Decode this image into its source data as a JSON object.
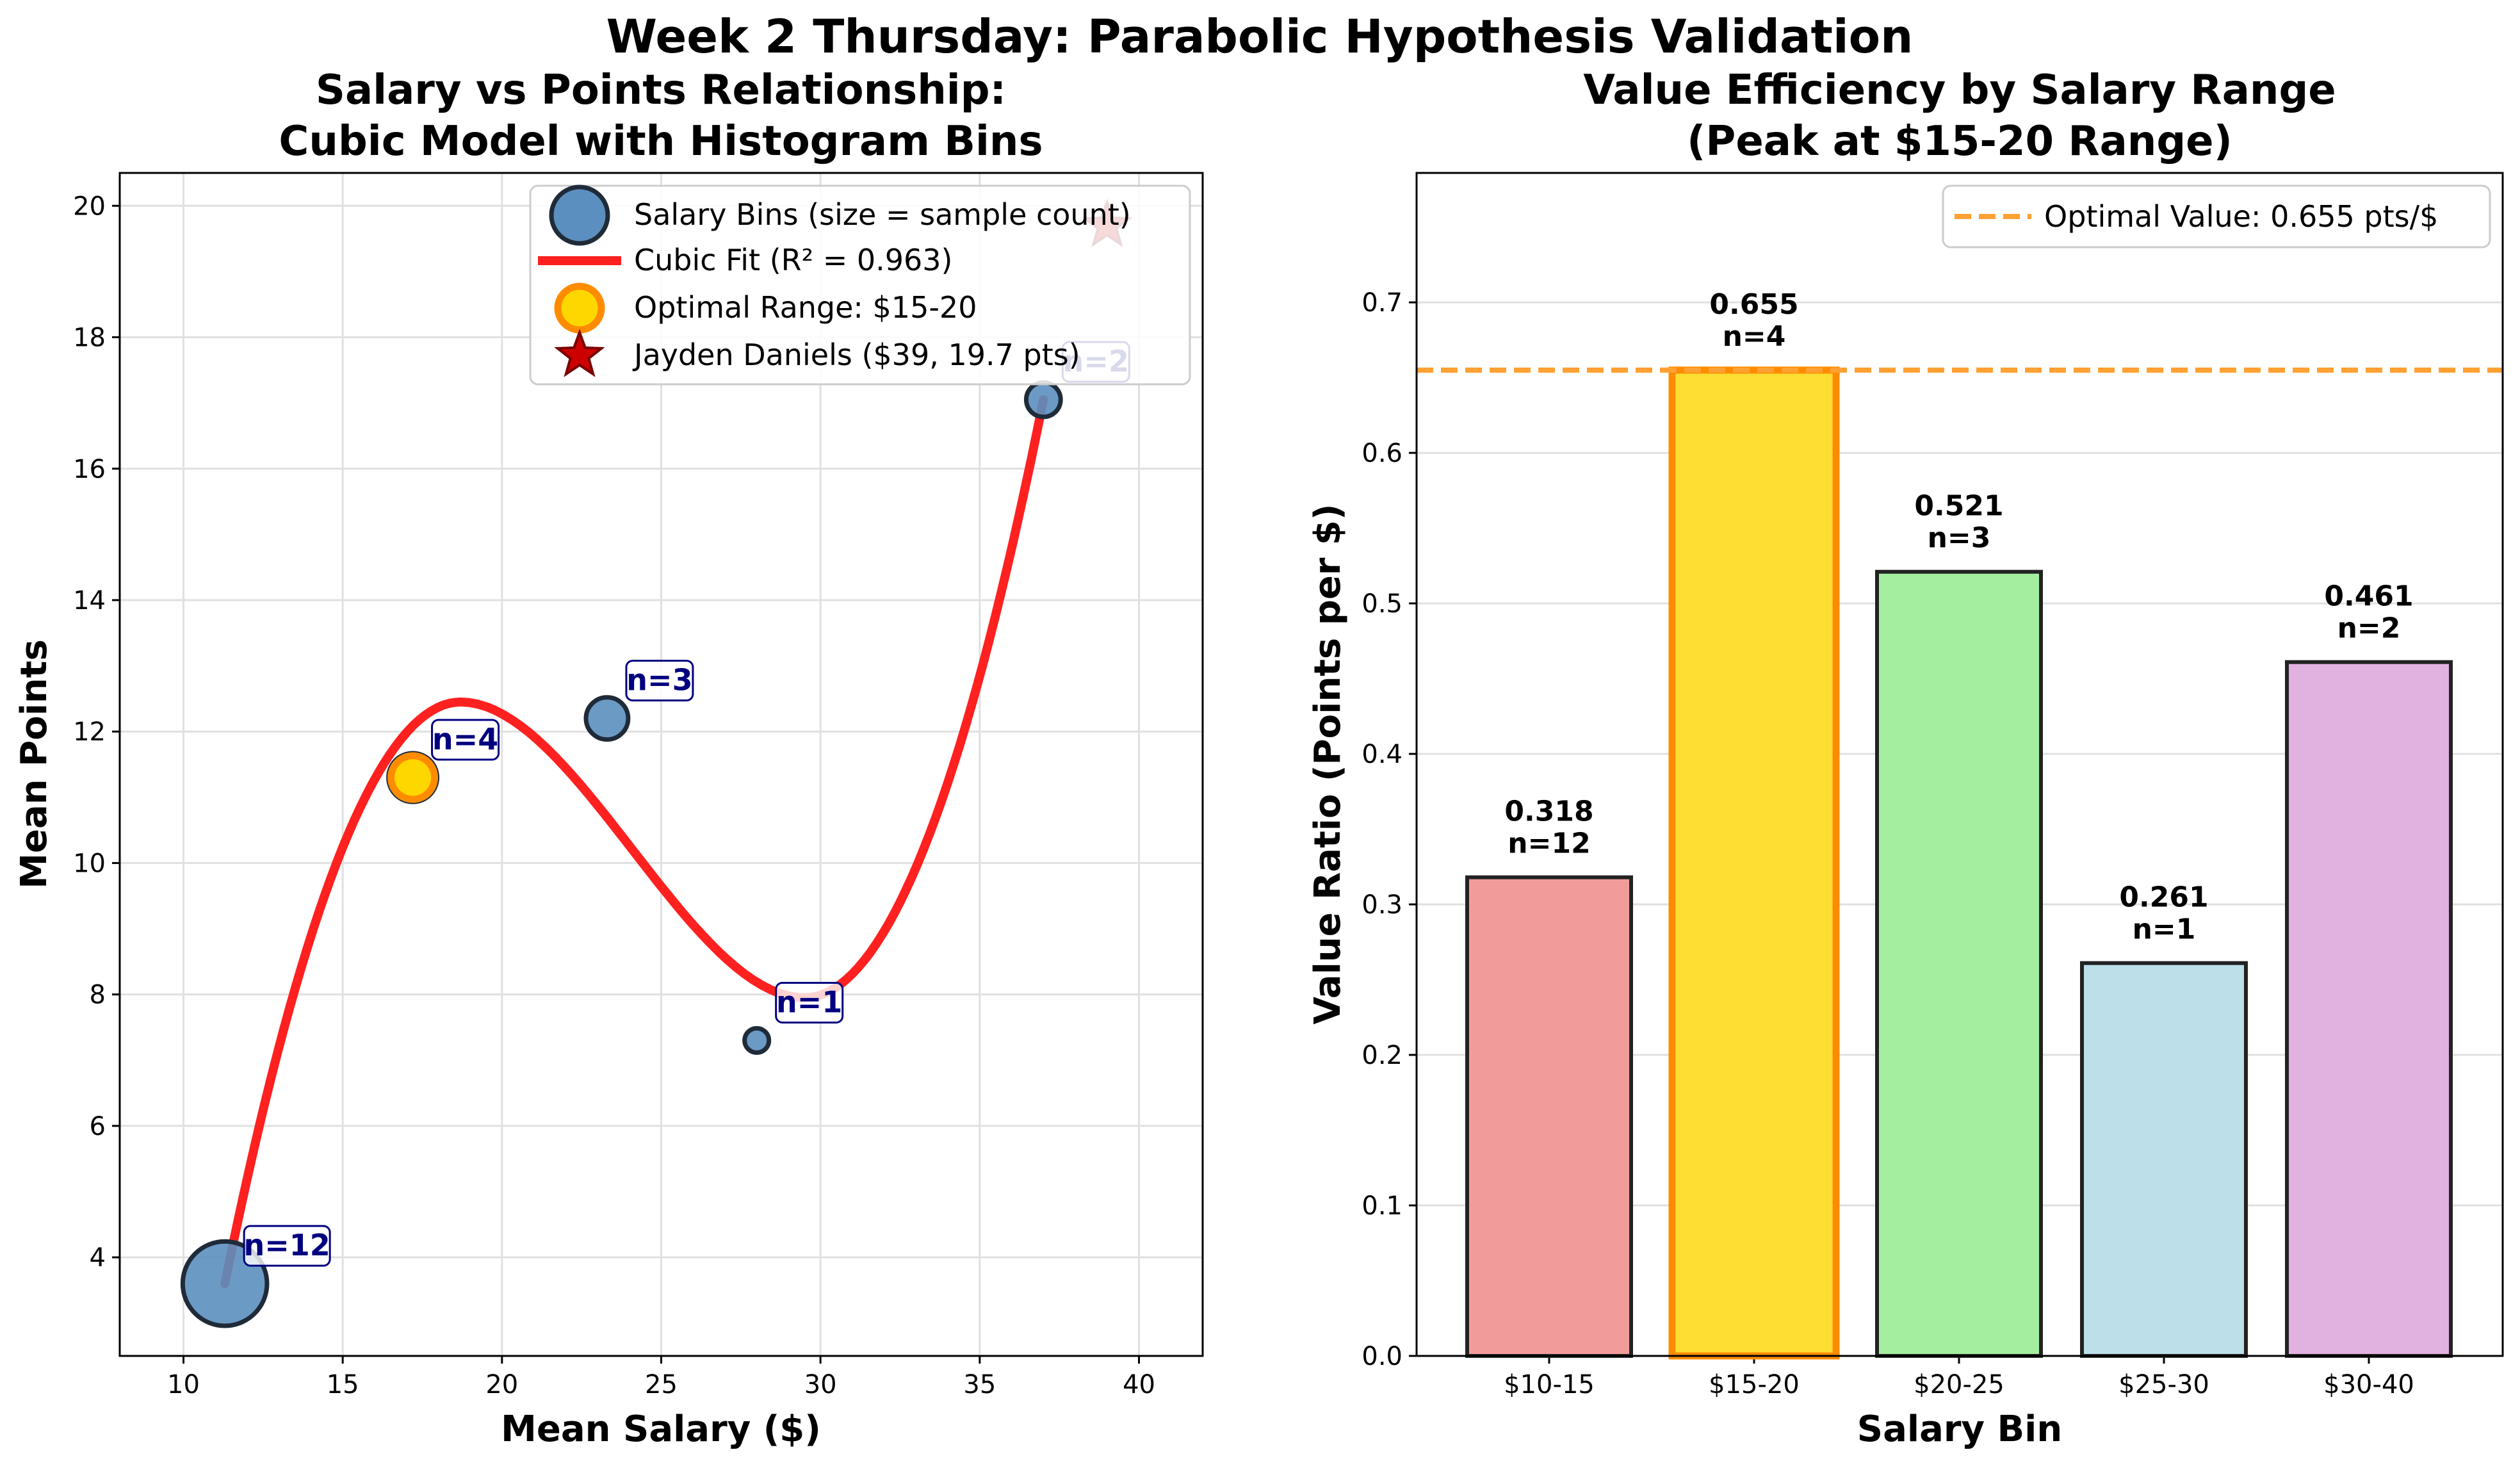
{
  "suptitle": "Week 2 Thursday: Parabolic Hypothesis Validation",
  "chart_data": [
    {
      "type": "scatter",
      "title_line1": "Salary vs Points Relationship:",
      "title_line2": "Cubic Model with Histogram Bins",
      "xlabel": "Mean Salary ($)",
      "ylabel": "Mean Points",
      "xlim": [
        8,
        42
      ],
      "ylim": [
        2.5,
        20.5
      ],
      "xticks": [
        10,
        15,
        20,
        25,
        30,
        35,
        40
      ],
      "yticks": [
        4,
        6,
        8,
        10,
        12,
        14,
        16,
        18,
        20
      ],
      "grid": true,
      "legend_position": "upper right",
      "legend": [
        "Salary Bins (size = sample count)",
        "Cubic Fit (R² = 0.963)",
        "Optimal Range: $15-20",
        "Jayden Daniels ($39, 19.7 pts)"
      ],
      "bins": [
        {
          "x": 11.3,
          "y": 3.6,
          "n": 12,
          "label": "n=12"
        },
        {
          "x": 17.2,
          "y": 11.3,
          "n": 4,
          "label": "n=4"
        },
        {
          "x": 23.3,
          "y": 12.2,
          "n": 3,
          "label": "n=3"
        },
        {
          "x": 28.0,
          "y": 7.3,
          "n": 1,
          "label": "n=1"
        },
        {
          "x": 37.0,
          "y": 17.05,
          "n": 2,
          "label": "n=2"
        }
      ],
      "optimal_point": {
        "x": 17.2,
        "y": 11.3
      },
      "star_point": {
        "x": 39.0,
        "y": 19.7
      },
      "cubic_fit": {
        "x_range": [
          11.3,
          37.0
        ],
        "peak": [
          18.7,
          12.45
        ],
        "trough": [
          29.5,
          7.95
        ]
      },
      "colors": {
        "bins": "#5b8fbf",
        "fit": "#ff2020",
        "optimal": "#ffd700",
        "optimal_edge": "#ff8c00",
        "star": "#cc0000",
        "annot": "#000080"
      }
    },
    {
      "type": "bar",
      "title_line1": "Value Efficiency by Salary Range",
      "title_line2": "(Peak at $15-20 Range)",
      "xlabel": "Salary Bin",
      "ylabel": "Value Ratio (Points per $)",
      "ylim": [
        0,
        0.786
      ],
      "yticks": [
        0.0,
        0.1,
        0.2,
        0.3,
        0.4,
        0.5,
        0.6,
        0.7
      ],
      "ytick_labels": [
        "0.0",
        "0.1",
        "0.2",
        "0.3",
        "0.4",
        "0.5",
        "0.6",
        "0.7"
      ],
      "categories": [
        "$10-15",
        "$15-20",
        "$20-25",
        "$25-30",
        "$30-40"
      ],
      "values": [
        0.318,
        0.655,
        0.521,
        0.261,
        0.461
      ],
      "value_labels": [
        "0.318",
        "0.655",
        "0.521",
        "0.261",
        "0.461"
      ],
      "count_labels": [
        "n=12",
        "n=4",
        "n=3",
        "n=1",
        "n=2"
      ],
      "bar_colors": [
        "#f19c9b",
        "#ffde33",
        "#a3ef9f",
        "#bcdfe9",
        "#e1b1e0"
      ],
      "highlight_index": 1,
      "highlight_edge": "#ff8c00",
      "reference_line": {
        "value": 0.655,
        "label": "Optimal Value: 0.655 pts/$",
        "color": "#ffa033"
      },
      "legend_position": "upper right",
      "grid": "y"
    }
  ]
}
